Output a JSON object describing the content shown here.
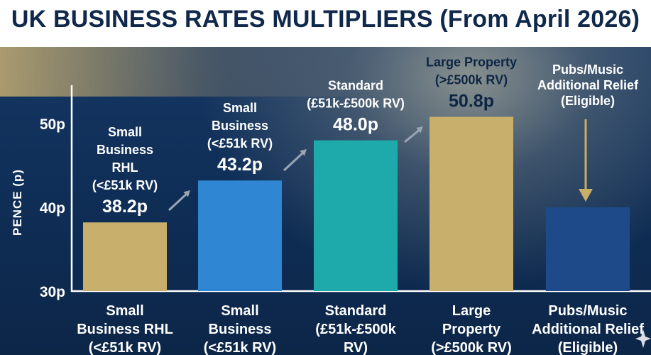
{
  "chart_data": {
    "type": "bar",
    "title": "UK BUSINESS RATES MULTIPLIERS (From April 2026)",
    "ylabel": "PENCE (p)",
    "ylim": [
      30,
      55
    ],
    "yticks": [
      "30p",
      "40p",
      "50p"
    ],
    "ytick_values": [
      30,
      40,
      50
    ],
    "grid": false,
    "categories": [
      [
        "Small",
        "Business RHL",
        "(<£51k RV)"
      ],
      [
        "Small",
        "Business",
        "(<£51k RV)"
      ],
      [
        "Standard",
        "(£51k-£500k",
        "RV)"
      ],
      [
        "Large",
        "Property",
        "(>£500k RV)"
      ],
      [
        "Pubs/Music",
        "Additional Relief",
        "(Eligible)"
      ]
    ],
    "values": [
      38.2,
      43.2,
      48.0,
      50.8,
      40.0
    ],
    "bar_labels": [
      [
        "Small",
        "Business",
        "RHL",
        "(<£51k RV)"
      ],
      [
        "Small",
        "Business",
        "(<£51k RV)"
      ],
      [
        "Standard",
        "(£51k-£500k RV)"
      ],
      [
        "Large Property",
        "(>£500k RV)"
      ],
      [
        "Pubs/Music",
        "Additional Relief",
        "(Eligible)"
      ]
    ],
    "value_labels": [
      "38.2p",
      "43.2p",
      "48.0p",
      "50.8p",
      ""
    ],
    "colors": [
      "#c8b06c",
      "#2f86d3",
      "#1ea9aa",
      "#c8b06c",
      "#1e4a8a"
    ]
  }
}
